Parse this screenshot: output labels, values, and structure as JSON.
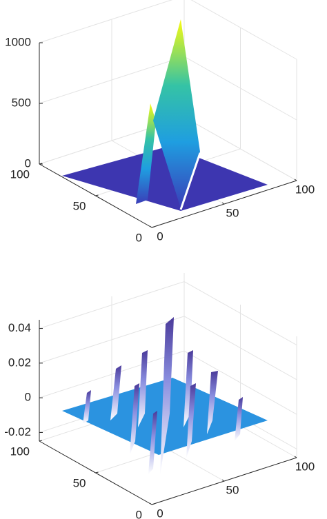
{
  "chart_data": [
    {
      "type": "surface",
      "xlim": [
        0,
        100
      ],
      "ylim": [
        0,
        100
      ],
      "zlim": [
        0,
        1000
      ],
      "xticks": [
        0,
        50,
        100
      ],
      "yticks": [
        0,
        50,
        100
      ],
      "zticks": [
        0,
        500,
        1000
      ],
      "grid": true
    },
    {
      "type": "surface",
      "xlim": [
        0,
        100
      ],
      "ylim": [
        0,
        100
      ],
      "zlim": [
        -0.025,
        0.045
      ],
      "xticks": [
        0,
        50,
        100
      ],
      "yticks": [
        0,
        50,
        100
      ],
      "zticks": [
        -0.02,
        0,
        0.02,
        0.04
      ],
      "grid": true
    }
  ]
}
